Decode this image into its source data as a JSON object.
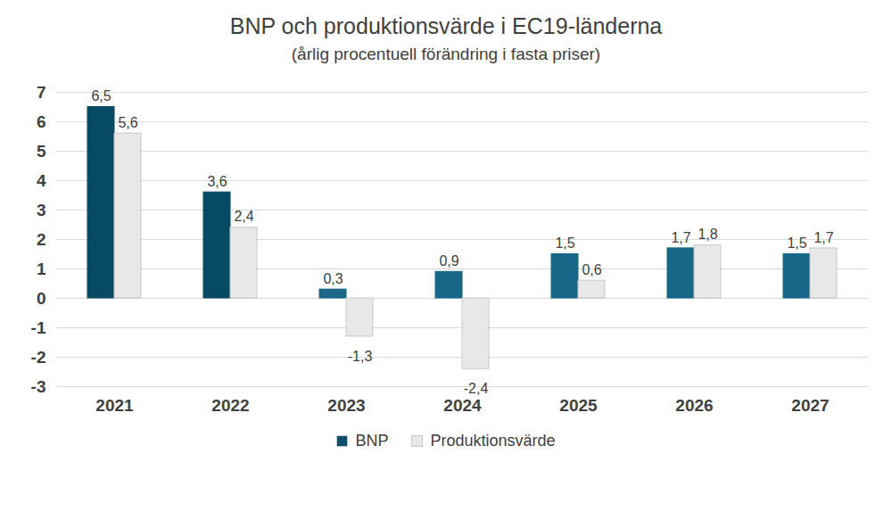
{
  "chart_data": {
    "type": "bar",
    "title": "BNP och produktionsvärde i EC19-länderna",
    "subtitle": "(årlig procentuell förändring i fasta priser)",
    "categories": [
      "2021",
      "2022",
      "2023",
      "2024",
      "2025",
      "2026",
      "2027"
    ],
    "series": [
      {
        "name": "BNP",
        "color": "#0b4d66",
        "colors": [
          "#064a64",
          "#064a64",
          "#186688",
          "#186688",
          "#186688",
          "#186688",
          "#186688"
        ],
        "values": [
          6.5,
          3.6,
          0.3,
          0.9,
          1.5,
          1.7,
          1.5
        ],
        "value_labels": [
          "6,5",
          "3,6",
          "0,3",
          "0,9",
          "1,5",
          "1,7",
          "1,5"
        ]
      },
      {
        "name": "Produktionsvärde",
        "color": "#e8e8e8",
        "values": [
          5.6,
          2.4,
          -1.3,
          -2.4,
          0.6,
          1.8,
          1.7
        ],
        "value_labels": [
          "5,6",
          "2,4",
          "-1,3",
          "-2,4",
          "0,6",
          "1,8",
          "1,7"
        ]
      }
    ],
    "ylim": [
      -3,
      7
    ],
    "yticks": [
      -3,
      -2,
      -1,
      0,
      1,
      2,
      3,
      4,
      5,
      6,
      7
    ],
    "grid": true,
    "data_labels": true,
    "legend": "bottom"
  }
}
